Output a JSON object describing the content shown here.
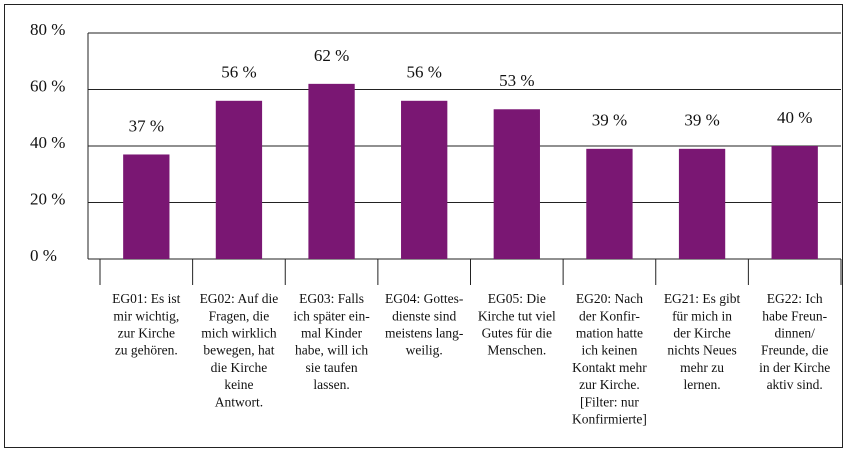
{
  "chart_data": {
    "type": "bar",
    "categories": [
      [
        "EG01: Es ist",
        "mir wichtig,",
        "zur Kirche",
        "zu gehören."
      ],
      [
        "EG02: Auf die",
        "Fragen, die",
        "mich wirklich",
        "bewegen, hat",
        "die Kirche",
        "keine",
        "Antwort."
      ],
      [
        "EG03: Falls",
        "ich später ein-",
        "mal Kinder",
        "habe, will ich",
        "sie taufen",
        "lassen."
      ],
      [
        "EG04: Gottes-",
        "dienste sind",
        "meistens lang-",
        "weilig."
      ],
      [
        "EG05: Die",
        "Kirche tut viel",
        "Gutes für die",
        "Menschen."
      ],
      [
        "EG20: Nach",
        "der Konfir-",
        "mation hatte",
        "ich keinen",
        "Kontakt mehr",
        "zur Kirche.",
        "[Filter: nur",
        "Konfirmierte]"
      ],
      [
        "EG21: Es gibt",
        "für mich in",
        "der Kirche",
        "nichts Neues",
        "mehr zu",
        "lernen."
      ],
      [
        "EG22: Ich",
        "habe Freun-",
        "dinnen/",
        "Freunde, die",
        "in der Kirche",
        "aktiv sind."
      ]
    ],
    "values": [
      37,
      56,
      62,
      56,
      53,
      39,
      39,
      40
    ],
    "value_labels": [
      "37 %",
      "56 %",
      "62 %",
      "56 %",
      "53 %",
      "39 %",
      "39 %",
      "40 %"
    ],
    "color": "#7a1773",
    "ylim": [
      0,
      80
    ],
    "yticks": [
      {
        "value": 0,
        "label": "0 %"
      },
      {
        "value": 20,
        "label": "20 %"
      },
      {
        "value": 40,
        "label": "40 %"
      },
      {
        "value": 60,
        "label": "60 %"
      },
      {
        "value": 80,
        "label": "80 %"
      }
    ],
    "grid": true
  }
}
